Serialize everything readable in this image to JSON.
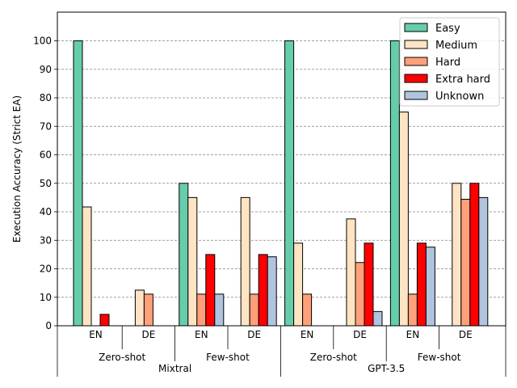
{
  "chart_data": {
    "type": "bar",
    "ylabel": "Execution Accuracy (Strict EA)",
    "ylim": [
      0,
      110
    ],
    "yticks": [
      0,
      10,
      20,
      30,
      40,
      50,
      60,
      70,
      80,
      90,
      100
    ],
    "grid": "horizontal dashed",
    "legend_position": "top-right",
    "categories": [
      "EN",
      "DE",
      "EN",
      "DE",
      "EN",
      "DE",
      "EN",
      "DE"
    ],
    "group_labels_level1": [
      {
        "label": "Zero-shot",
        "span": [
          0,
          1
        ]
      },
      {
        "label": "Few-shot",
        "span": [
          2,
          3
        ]
      },
      {
        "label": "Zero-shot",
        "span": [
          4,
          5
        ]
      },
      {
        "label": "Few-shot",
        "span": [
          6,
          7
        ]
      }
    ],
    "group_labels_level2": [
      {
        "label": "Mixtral",
        "span": [
          0,
          3
        ]
      },
      {
        "label": "GPT-3.5",
        "span": [
          4,
          7
        ]
      }
    ],
    "series": [
      {
        "name": "Easy",
        "color": "#66cdaa",
        "values": [
          100,
          0,
          50,
          0,
          100,
          0,
          100,
          0
        ]
      },
      {
        "name": "Medium",
        "color": "#ffe4c4",
        "values": [
          41.7,
          12.5,
          45,
          45,
          29,
          37.5,
          75,
          50
        ]
      },
      {
        "name": "Hard",
        "color": "#ffa07a",
        "values": [
          0,
          11.1,
          11.1,
          11.1,
          11.1,
          22.2,
          11.1,
          44.4
        ]
      },
      {
        "name": "Extra hard",
        "color": "#ff0000",
        "values": [
          4,
          0,
          25,
          25,
          0,
          29,
          29,
          50
        ]
      },
      {
        "name": "Unknown",
        "color": "#b0c4de",
        "values": [
          0,
          0,
          11.1,
          24.2,
          0,
          5,
          27.6,
          45
        ]
      }
    ]
  }
}
